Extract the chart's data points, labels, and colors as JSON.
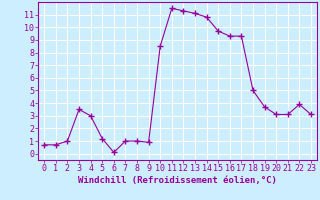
{
  "x": [
    0,
    1,
    2,
    3,
    4,
    5,
    6,
    7,
    8,
    9,
    10,
    11,
    12,
    13,
    14,
    15,
    16,
    17,
    18,
    19,
    20,
    21,
    22,
    23
  ],
  "y": [
    0.7,
    0.7,
    1.0,
    3.5,
    3.0,
    1.2,
    0.1,
    1.0,
    1.0,
    0.9,
    8.5,
    11.5,
    11.3,
    11.1,
    10.8,
    9.7,
    9.3,
    9.3,
    5.0,
    3.7,
    3.1,
    3.1,
    3.9,
    3.1
  ],
  "line_color": "#990099",
  "marker": "+",
  "markersize": 4,
  "linewidth": 0.8,
  "bg_color": "#cceeff",
  "grid_color": "#ffffff",
  "xlabel": "Windchill (Refroidissement éolien,°C)",
  "xlabel_fontsize": 6.5,
  "tick_fontsize": 6,
  "xlim": [
    -0.5,
    23.5
  ],
  "ylim": [
    -0.5,
    12.0
  ],
  "yticks": [
    0,
    1,
    2,
    3,
    4,
    5,
    6,
    7,
    8,
    9,
    10,
    11
  ],
  "xticks": [
    0,
    1,
    2,
    3,
    4,
    5,
    6,
    7,
    8,
    9,
    10,
    11,
    12,
    13,
    14,
    15,
    16,
    17,
    18,
    19,
    20,
    21,
    22,
    23
  ]
}
